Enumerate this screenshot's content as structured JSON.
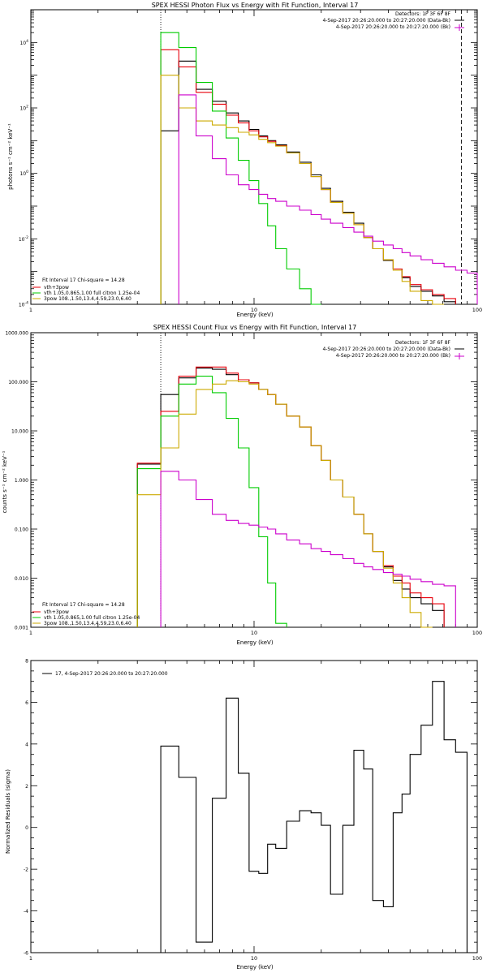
{
  "chart_data": [
    {
      "type": "line",
      "title": "SPEX HESSI Photon Flux vs Energy with Fit Function, Interval 17",
      "xlabel": "Energy (keV)",
      "ylabel": "photons s⁻¹ cm⁻² keV⁻¹",
      "xscale": "log",
      "yscale": "log",
      "xlim": [
        1,
        100
      ],
      "ylim": [
        0.0001,
        100000
      ],
      "xticks": [
        {
          "v": 1,
          "label": "1"
        },
        {
          "v": 10,
          "label": "10"
        },
        {
          "v": 100,
          "label": "100"
        }
      ],
      "yticks": [
        {
          "v": 0.0001,
          "b": "10",
          "e": "-4"
        },
        {
          "v": 0.01,
          "b": "10",
          "e": "-2"
        },
        {
          "v": 1,
          "b": "10",
          "e": "0"
        },
        {
          "v": 100,
          "b": "10",
          "e": "2"
        },
        {
          "v": 10000,
          "b": "10",
          "e": "4"
        }
      ],
      "vlines": [
        {
          "x": 3.82,
          "style": "dotted"
        },
        {
          "x": 85,
          "style": "dashed"
        }
      ],
      "header": [
        "Detectors: 1F 3F 6F 8F",
        "4-Sep-2017 20:26:20.000 to 20:27:20.000 (Data-Bk)",
        "4-Sep-2017 20:26:20.000 to 20:27:20.000 (Bk)"
      ],
      "annotations": [
        "Fit Interval 17   Chi-square = 14.28",
        "vth+3pow",
        "vth 1.05,0.865,1.00  full citron 1.25e-04",
        "3pow 108.,1.50,13.4,4.59,23.0,6.40"
      ],
      "edges": [
        3,
        3.82,
        4.6,
        5.5,
        6.5,
        7.5,
        8.5,
        9.5,
        10.5,
        11.5,
        12.5,
        14,
        16,
        18,
        20,
        22,
        25,
        28,
        31,
        34,
        38,
        42,
        46,
        50,
        56,
        63,
        71,
        80,
        90,
        100
      ],
      "series": [
        {
          "name": "",
          "color": "#000000",
          "values": [
            null,
            20,
            2700,
            370,
            160,
            70,
            40,
            22,
            14,
            10,
            7.5,
            4.5,
            2.2,
            0.9,
            0.35,
            0.14,
            0.065,
            0.03,
            0.011,
            0.005,
            0.0022,
            0.0012,
            0.00065,
            0.00035,
            0.00025,
            0.00018,
            0.00012,
            0.0001,
            0.0001
          ]
        },
        {
          "name": "vth+3pow",
          "color": "#e8000b",
          "values": [
            null,
            6000,
            1800,
            300,
            130,
            60,
            35,
            20,
            13,
            9.5,
            7,
            4.2,
            2,
            0.8,
            0.32,
            0.13,
            0.06,
            0.027,
            0.011,
            0.005,
            0.0023,
            0.0012,
            0.0007,
            0.0004,
            0.00028,
            0.0002,
            0.00015,
            null,
            null
          ]
        },
        {
          "name": "vth 1.05,0.865,1.00  full citron 1.25e-04",
          "color": "#00cc00",
          "values": [
            null,
            20000,
            7000,
            600,
            80,
            12,
            2.5,
            0.6,
            0.12,
            0.025,
            0.005,
            0.0012,
            0.0003,
            0.0001,
            null,
            null,
            null,
            null,
            null,
            null,
            null,
            null,
            null,
            null,
            null,
            null,
            null,
            null,
            null
          ]
        },
        {
          "name": "3pow 108.,1.50,13.4,4.59,23.0,6.40",
          "color": "#ccaa00",
          "values": [
            null,
            1000,
            100,
            40,
            30,
            25,
            18,
            15,
            11,
            8.7,
            6.8,
            4.2,
            2,
            0.8,
            0.32,
            0.13,
            0.06,
            0.027,
            0.011,
            0.005,
            0.0023,
            0.0011,
            0.0005,
            0.00025,
            0.00013,
            0.0001,
            null,
            null,
            null
          ]
        },
        {
          "name": "",
          "color": "#cc00cc",
          "values": [
            null,
            null,
            250,
            14,
            2.8,
            0.9,
            0.45,
            0.32,
            0.23,
            0.17,
            0.14,
            0.1,
            0.075,
            0.055,
            0.04,
            0.03,
            0.022,
            0.016,
            0.012,
            0.0085,
            0.0065,
            0.005,
            0.0038,
            0.003,
            0.0023,
            0.0018,
            0.0014,
            0.0011,
            0.0009
          ]
        }
      ]
    },
    {
      "type": "line",
      "title": "SPEX HESSI Count Flux vs Energy with Fit Function, Interval 17",
      "xlabel": "Energy (keV)",
      "ylabel": "counts s⁻¹ cm⁻² keV⁻¹",
      "xscale": "log",
      "yscale": "log",
      "xlim": [
        1,
        100
      ],
      "ylim": [
        0.001,
        1000
      ],
      "xticks": [
        {
          "v": 1,
          "label": "1"
        },
        {
          "v": 10,
          "label": "10"
        },
        {
          "v": 100,
          "label": "100"
        }
      ],
      "yticks": [
        {
          "v": 0.001,
          "label": "0.001"
        },
        {
          "v": 0.01,
          "label": "0.010"
        },
        {
          "v": 0.1,
          "label": "0.100"
        },
        {
          "v": 1,
          "label": "1.000"
        },
        {
          "v": 10,
          "label": "10.000"
        },
        {
          "v": 100,
          "label": "100.000"
        },
        {
          "v": 1000,
          "label": "1000.000"
        }
      ],
      "vlines": [
        {
          "x": 3.82,
          "style": "dotted"
        }
      ],
      "header": [
        "Detectors: 1F 3F 6F 8F",
        "4-Sep-2017 20:26:20.000 to 20:27:20.000 (Data-Bk)",
        "4-Sep-2017 20:26:20.000 to 20:27:20.000 (Bk)"
      ],
      "annotations": [
        "Fit Interval 17   Chi-square = 14.28",
        "vth+3pow",
        "vth 1.05,0.865,1.00  full citron 1.25e-04",
        "3pow 108.,1.50,13.4,4.59,23.0,6.40"
      ],
      "edges": [
        3,
        3.82,
        4.6,
        5.5,
        6.5,
        7.5,
        8.5,
        9.5,
        10.5,
        11.5,
        12.5,
        14,
        16,
        18,
        20,
        22,
        25,
        28,
        31,
        34,
        38,
        42,
        46,
        50,
        56,
        63,
        71,
        80,
        90,
        100
      ],
      "series": [
        {
          "name": "",
          "color": "#000000",
          "values": [
            2.1,
            55,
            120,
            190,
            180,
            140,
            110,
            95,
            70,
            55,
            35,
            20,
            12,
            5,
            2.5,
            1.0,
            0.45,
            0.2,
            0.08,
            0.035,
            0.017,
            0.009,
            0.006,
            0.004,
            0.003,
            0.0022,
            null,
            null,
            null
          ]
        },
        {
          "name": "vth+3pow",
          "color": "#e8000b",
          "values": [
            2.2,
            25,
            130,
            200,
            200,
            150,
            110,
            95,
            70,
            55,
            35,
            20,
            12,
            5,
            2.5,
            1.0,
            0.45,
            0.2,
            0.08,
            0.035,
            0.018,
            0.011,
            0.008,
            0.005,
            0.004,
            0.003,
            null,
            null,
            null
          ]
        },
        {
          "name": "vth 1.05,0.865,1.00  full citron 1.25e-04",
          "color": "#00cc00",
          "values": [
            1.7,
            20,
            90,
            130,
            60,
            18,
            4.5,
            0.7,
            0.07,
            0.008,
            0.0012,
            null,
            null,
            null,
            null,
            null,
            null,
            null,
            null,
            null,
            null,
            null,
            null,
            null,
            null,
            null,
            null,
            null,
            null
          ]
        },
        {
          "name": "3pow 108.,1.50,13.4,4.59,23.0,6.40",
          "color": "#ccaa00",
          "values": [
            0.5,
            4.5,
            22,
            70,
            90,
            105,
            100,
            90,
            70,
            55,
            35,
            20,
            12,
            5,
            2.5,
            1.0,
            0.45,
            0.2,
            0.08,
            0.035,
            0.016,
            0.008,
            0.004,
            0.002,
            0.001,
            null,
            null,
            null,
            null
          ]
        },
        {
          "name": "",
          "color": "#cc00cc",
          "values": [
            null,
            1.5,
            1.0,
            0.4,
            0.2,
            0.15,
            0.13,
            0.12,
            0.11,
            0.1,
            0.08,
            0.06,
            0.05,
            0.04,
            0.035,
            0.03,
            0.025,
            0.02,
            0.017,
            0.015,
            0.013,
            0.012,
            0.011,
            0.0095,
            0.0085,
            0.0075,
            0.007,
            null,
            null
          ]
        }
      ]
    },
    {
      "type": "line",
      "title": "",
      "xlabel": "Energy (keV)",
      "ylabel": "Normalized Residuals (sigma)",
      "xscale": "log",
      "yscale": "linear",
      "xlim": [
        1,
        100
      ],
      "ylim": [
        -6,
        8
      ],
      "xticks": [
        {
          "v": 1,
          "label": "1"
        },
        {
          "v": 10,
          "label": "10"
        },
        {
          "v": 100,
          "label": "100"
        }
      ],
      "yticks": [
        {
          "v": -6,
          "label": "-6"
        },
        {
          "v": -4,
          "label": "-4"
        },
        {
          "v": -2,
          "label": "-2"
        },
        {
          "v": 0,
          "label": "0"
        },
        {
          "v": 2,
          "label": "2"
        },
        {
          "v": 4,
          "label": "4"
        },
        {
          "v": 6,
          "label": "6"
        },
        {
          "v": 8,
          "label": "8"
        }
      ],
      "legend": "17,  4-Sep-2017 20:26:20.000 to 20:27:20.000",
      "edges": [
        3.82,
        4.6,
        5.5,
        6.5,
        7.5,
        8.5,
        9.5,
        10.5,
        11.5,
        12.5,
        14,
        16,
        18,
        20,
        22,
        25,
        28,
        31,
        34,
        38,
        42,
        46,
        50,
        56,
        63,
        71,
        80,
        90,
        100
      ],
      "series": [
        {
          "name": "17,  4-Sep-2017 20:26:20.000 to 20:27:20.000",
          "color": "#000000",
          "values": [
            3.9,
            2.4,
            -5.5,
            1.4,
            6.2,
            2.6,
            -2.1,
            -2.2,
            -0.8,
            -1.0,
            0.3,
            0.8,
            0.7,
            0.1,
            -3.2,
            0.1,
            3.7,
            2.8,
            -3.5,
            -3.8,
            0.7,
            1.6,
            3.5,
            4.9,
            7.0,
            4.2,
            3.6
          ]
        }
      ]
    }
  ]
}
